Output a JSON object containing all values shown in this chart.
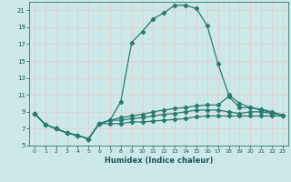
{
  "background_color": "#cce8e8",
  "grid_color": "#e8c8c8",
  "line_color": "#2a7a6e",
  "xlabel": "Humidex (Indice chaleur)",
  "xlim": [
    -0.5,
    23.5
  ],
  "ylim": [
    5,
    22
  ],
  "yticks": [
    5,
    7,
    9,
    11,
    13,
    15,
    17,
    19,
    21
  ],
  "xticks": [
    0,
    1,
    2,
    3,
    4,
    5,
    6,
    7,
    8,
    9,
    10,
    11,
    12,
    13,
    14,
    15,
    16,
    17,
    18,
    19,
    20,
    21,
    22,
    23
  ],
  "xtick_labels": [
    "0",
    "1",
    "2",
    "3",
    "4",
    "5",
    "6",
    "7",
    "8",
    "9",
    "10",
    "11",
    "12",
    "13",
    "14",
    "15",
    "16",
    "17",
    "18",
    "19",
    "20",
    "21",
    "22",
    "23"
  ],
  "curves": [
    {
      "x": [
        0,
        1,
        2,
        3,
        4,
        5,
        6,
        7,
        8,
        9,
        10,
        11,
        12,
        13,
        14,
        15,
        16,
        17,
        18,
        19,
        20,
        21,
        22,
        23
      ],
      "y": [
        8.8,
        7.5,
        7.0,
        6.5,
        6.2,
        5.8,
        7.6,
        8.0,
        10.2,
        17.2,
        18.5,
        20.0,
        20.7,
        21.6,
        21.6,
        21.2,
        19.2,
        14.7,
        11.0,
        10.0,
        9.5,
        9.2,
        8.9,
        8.6
      ]
    },
    {
      "x": [
        0,
        1,
        2,
        3,
        4,
        5,
        6,
        7,
        8,
        9,
        10,
        11,
        12,
        13,
        14,
        15,
        16,
        17,
        18,
        19,
        20,
        21,
        22,
        23
      ],
      "y": [
        8.8,
        7.5,
        7.0,
        6.5,
        6.2,
        5.8,
        7.6,
        8.0,
        8.3,
        8.5,
        8.7,
        9.0,
        9.2,
        9.4,
        9.5,
        9.7,
        9.8,
        9.8,
        10.8,
        9.5,
        9.5,
        9.3,
        9.0,
        8.6
      ]
    },
    {
      "x": [
        0,
        1,
        2,
        3,
        4,
        5,
        6,
        7,
        8,
        9,
        10,
        11,
        12,
        13,
        14,
        15,
        16,
        17,
        18,
        19,
        20,
        21,
        22,
        23
      ],
      "y": [
        8.8,
        7.5,
        7.0,
        6.5,
        6.2,
        5.8,
        7.6,
        8.0,
        8.0,
        8.2,
        8.3,
        8.5,
        8.7,
        8.8,
        9.0,
        9.2,
        9.2,
        9.2,
        9.0,
        8.8,
        9.0,
        9.0,
        8.8,
        8.6
      ]
    },
    {
      "x": [
        0,
        1,
        2,
        3,
        4,
        5,
        6,
        7,
        8,
        9,
        10,
        11,
        12,
        13,
        14,
        15,
        16,
        17,
        18,
        19,
        20,
        21,
        22,
        23
      ],
      "y": [
        8.8,
        7.5,
        7.0,
        6.5,
        6.2,
        5.8,
        7.6,
        7.6,
        7.6,
        7.8,
        7.8,
        7.9,
        8.0,
        8.1,
        8.2,
        8.4,
        8.5,
        8.5,
        8.5,
        8.5,
        8.5,
        8.5,
        8.5,
        8.5
      ]
    }
  ]
}
